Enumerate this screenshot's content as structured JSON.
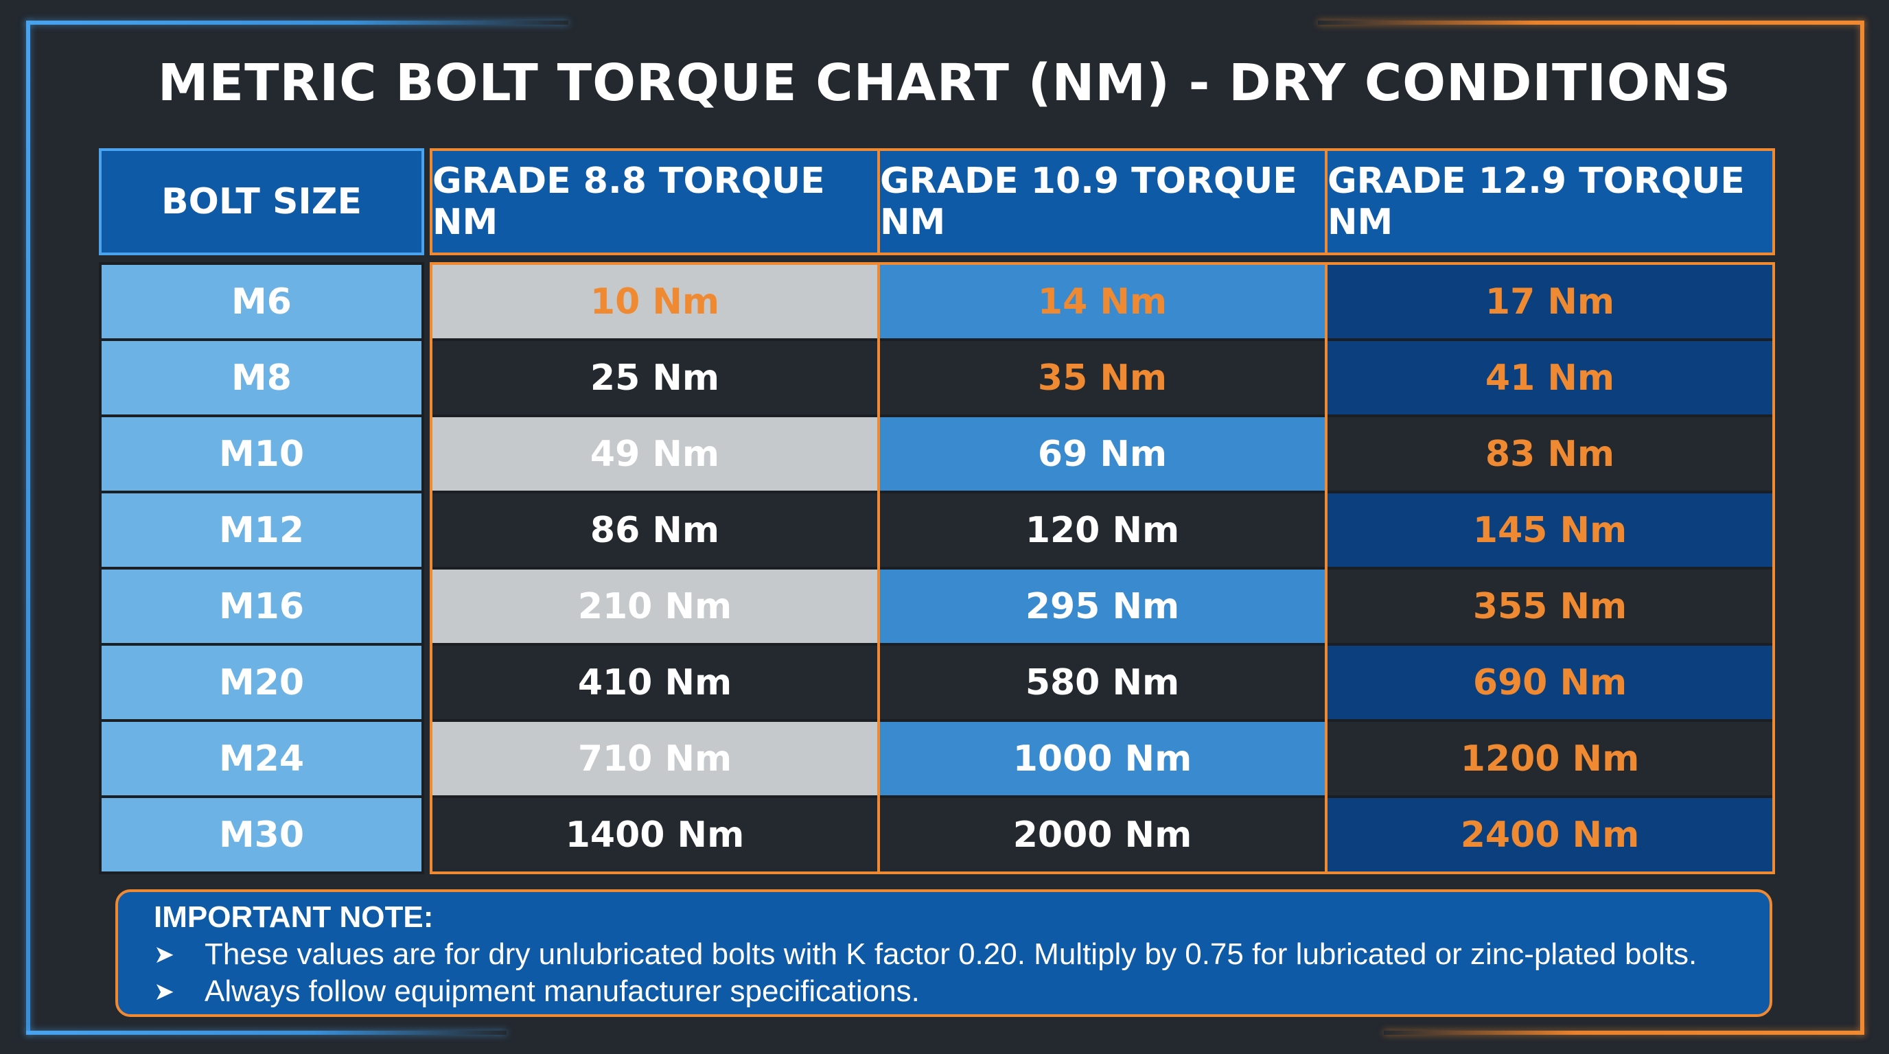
{
  "title": "METRIC BOLT TORQUE CHART (NM) - DRY CONDITIONS",
  "headers": {
    "bolt_size": "BOLT SIZE",
    "grades": [
      "GRADE 8.8 TORQUE NM",
      "GRADE 10.9 TORQUE NM",
      "GRADE 12.9 TORQUE NM"
    ]
  },
  "rows": [
    {
      "size": "M6",
      "values": [
        "10 Nm",
        "14 Nm",
        "17 Nm"
      ]
    },
    {
      "size": "M8",
      "values": [
        "25 Nm",
        "35 Nm",
        "41 Nm"
      ]
    },
    {
      "size": "M10",
      "values": [
        "49 Nm",
        "69 Nm",
        "83 Nm"
      ]
    },
    {
      "size": "M12",
      "values": [
        "86 Nm",
        "120 Nm",
        "145 Nm"
      ]
    },
    {
      "size": "M16",
      "values": [
        "210 Nm",
        "295 Nm",
        "355 Nm"
      ]
    },
    {
      "size": "M20",
      "values": [
        "410 Nm",
        "580 Nm",
        "690 Nm"
      ]
    },
    {
      "size": "M24",
      "values": [
        "710 Nm",
        "1000 Nm",
        "1200 Nm"
      ]
    },
    {
      "size": "M30",
      "values": [
        "1400 Nm",
        "2000 Nm",
        "2400 Nm"
      ]
    }
  ],
  "cell_colors": {
    "light_gray": "#c6c9cc",
    "dark": "#24292f",
    "mid_blue": "#3a8ad0",
    "deep_blue": "#0b3f7e",
    "size_blue": "#6cb2e4",
    "header_blue": "#0f5aa6",
    "accent_orange": "#f08a32",
    "text_white": "#ffffff"
  },
  "cell_text_orange": [
    [
      true,
      true,
      true
    ],
    [
      false,
      true,
      true
    ],
    [
      false,
      false,
      true
    ],
    [
      false,
      false,
      true
    ],
    [
      false,
      false,
      true
    ],
    [
      false,
      false,
      true
    ],
    [
      false,
      false,
      true
    ],
    [
      false,
      false,
      true
    ]
  ],
  "note": {
    "title": "IMPORTANT NOTE:",
    "items": [
      "These values are for dry unlubricated bolts with K factor 0.20. Multiply by 0.75 for lubricated or zinc-plated bolts.",
      "Always follow equipment manufacturer specifications."
    ],
    "bullet_icon": "arrowhead-bullet-icon"
  },
  "chart_data": {
    "type": "table",
    "title": "METRIC BOLT TORQUE CHART (NM) - DRY CONDITIONS",
    "columns": [
      "BOLT SIZE",
      "GRADE 8.8 TORQUE NM",
      "GRADE 10.9 TORQUE NM",
      "GRADE 12.9 TORQUE NM"
    ],
    "categories": [
      "M6",
      "M8",
      "M10",
      "M12",
      "M16",
      "M20",
      "M24",
      "M30"
    ],
    "series": [
      {
        "name": "GRADE 8.8 TORQUE NM",
        "values": [
          10,
          25,
          49,
          86,
          210,
          410,
          710,
          1400
        ]
      },
      {
        "name": "GRADE 10.9 TORQUE NM",
        "values": [
          14,
          35,
          69,
          120,
          295,
          580,
          1000,
          2000
        ]
      },
      {
        "name": "GRADE 12.9 TORQUE NM",
        "values": [
          17,
          41,
          83,
          145,
          355,
          690,
          1200,
          2400
        ]
      }
    ]
  }
}
